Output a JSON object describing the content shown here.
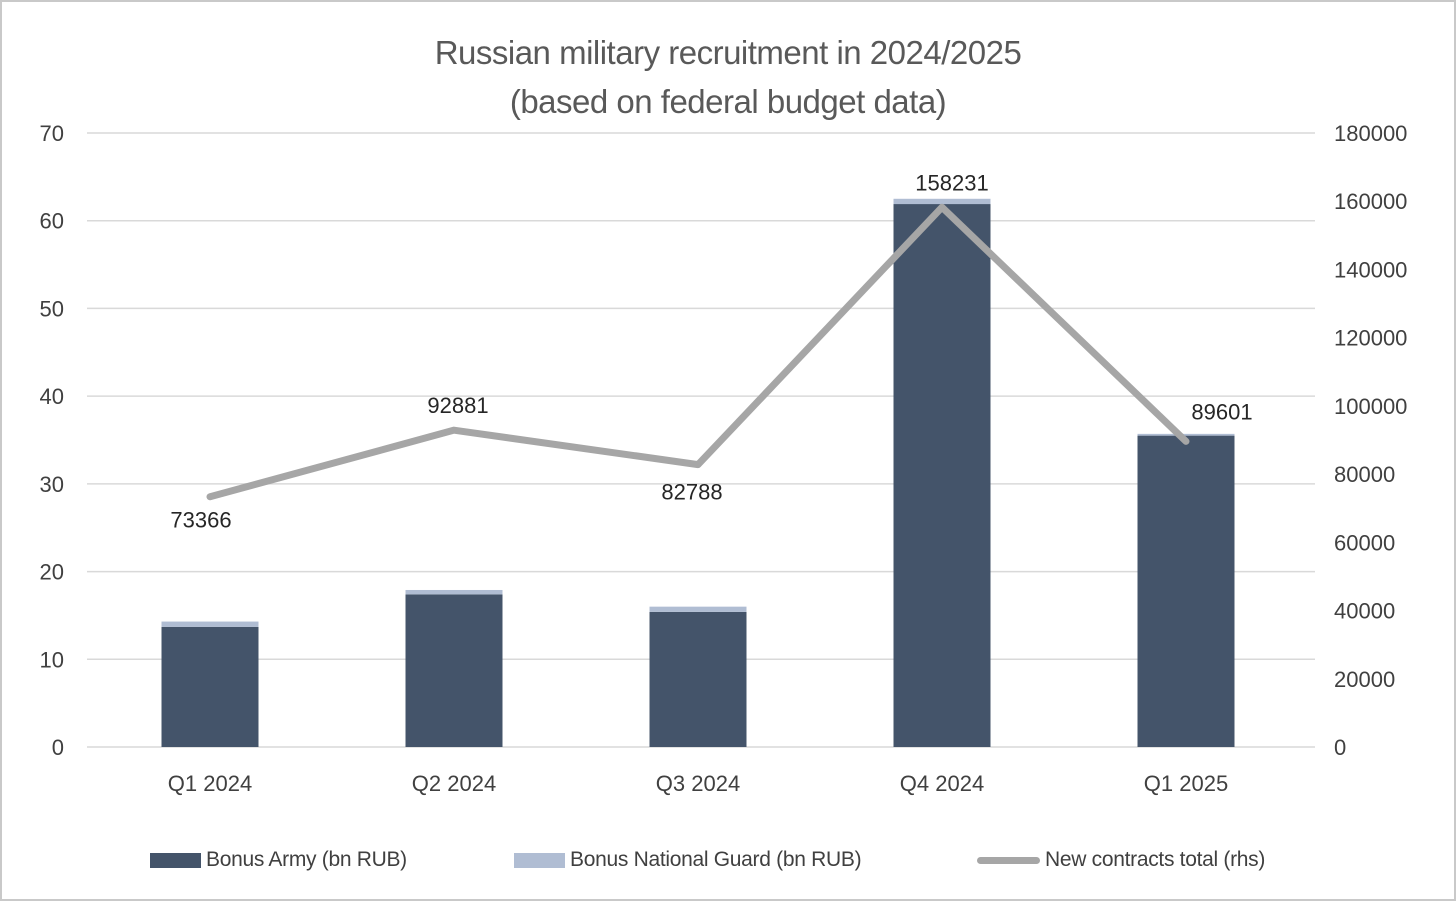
{
  "title": {
    "line1": "Russian military recruitment in 2024/2025",
    "line2": "(based on federal budget data)"
  },
  "colors": {
    "army": "#44546A",
    "guard": "#B0BDD3",
    "line": "#A6A6A6",
    "gridline": "#D9D9D9",
    "axis_text": "#404040",
    "title_text": "#595959",
    "point_label_text": "#262626"
  },
  "chart_data": {
    "type": "bar",
    "subtype": "stacked-bars-with-line-combo",
    "title": "Russian military recruitment in 2024/2025",
    "subtitle": "(based on federal budget data)",
    "categories": [
      "Q1 2024",
      "Q2 2024",
      "Q3 2024",
      "Q4 2024",
      "Q1 2025"
    ],
    "series": [
      {
        "name": "Bonus Army (bn RUB)",
        "type": "bar",
        "axis": "left",
        "values": [
          13.7,
          17.4,
          15.4,
          61.9,
          35.5
        ]
      },
      {
        "name": "Bonus National Guard (bn RUB)",
        "type": "bar",
        "axis": "left",
        "values": [
          0.6,
          0.5,
          0.6,
          0.6,
          0.2
        ]
      },
      {
        "name": "New contracts total (rhs)",
        "type": "line",
        "axis": "right",
        "values": [
          73366,
          92881,
          82788,
          158231,
          89601
        ],
        "data_labels": [
          "73366",
          "92881",
          "82788",
          "158231",
          "89601"
        ]
      }
    ],
    "left_axis": {
      "min": 0,
      "max": 70,
      "step": 10,
      "ticks": [
        0,
        10,
        20,
        30,
        40,
        50,
        60,
        70
      ]
    },
    "right_axis": {
      "min": 0,
      "max": 180000,
      "step": 20000,
      "ticks": [
        0,
        20000,
        40000,
        60000,
        80000,
        100000,
        120000,
        140000,
        160000,
        180000
      ]
    },
    "grid": true,
    "legend_position": "bottom"
  }
}
